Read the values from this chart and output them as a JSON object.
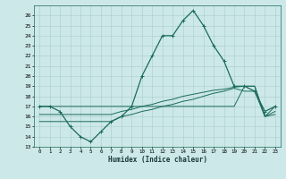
{
  "xlabel": "Humidex (Indice chaleur)",
  "bg_color": "#cce8e8",
  "grid_color": "#aacccc",
  "line_color": "#1a6b5a",
  "xlim": [
    -0.5,
    23.5
  ],
  "ylim": [
    13,
    27
  ],
  "yticks": [
    13,
    14,
    15,
    16,
    17,
    18,
    19,
    20,
    21,
    22,
    23,
    24,
    25,
    26
  ],
  "xticks": [
    0,
    1,
    2,
    3,
    4,
    5,
    6,
    7,
    8,
    9,
    10,
    11,
    12,
    13,
    14,
    15,
    16,
    17,
    18,
    19,
    20,
    21,
    22,
    23
  ],
  "humidex_curve": [
    17,
    17,
    16.5,
    15,
    14,
    13.5,
    14.5,
    15.5,
    16,
    17,
    20,
    22,
    24,
    24,
    25.5,
    26.5,
    25,
    23,
    21.5,
    19,
    19,
    18.5,
    16.5,
    17
  ],
  "line1": [
    17,
    17,
    17,
    17,
    17,
    17,
    17,
    17,
    17,
    17,
    17,
    17,
    17,
    17,
    17,
    17,
    17,
    17,
    17,
    17,
    19,
    19,
    16,
    17
  ],
  "line2": [
    16.2,
    16.2,
    16.2,
    16.2,
    16.2,
    16.2,
    16.2,
    16.2,
    16.5,
    16.7,
    17,
    17.2,
    17.5,
    17.7,
    18,
    18.2,
    18.4,
    18.6,
    18.7,
    18.9,
    19,
    19,
    16,
    16.2
  ],
  "line3": [
    15.5,
    15.5,
    15.5,
    15.5,
    15.5,
    15.5,
    15.5,
    15.5,
    16,
    16.2,
    16.5,
    16.7,
    17,
    17.2,
    17.5,
    17.7,
    18,
    18.3,
    18.5,
    18.8,
    18.5,
    18.5,
    16,
    16.5
  ]
}
